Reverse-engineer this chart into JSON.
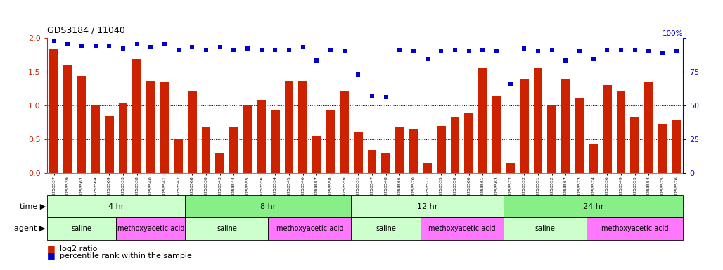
{
  "title": "GDS3184 / 11040",
  "samples": [
    "GSM253537",
    "GSM253539",
    "GSM253562",
    "GSM253564",
    "GSM253569",
    "GSM253533",
    "GSM253538",
    "GSM253540",
    "GSM253541",
    "GSM253542",
    "GSM253568",
    "GSM253530",
    "GSM253543",
    "GSM253544",
    "GSM253555",
    "GSM253556",
    "GSM253534",
    "GSM253545",
    "GSM253546",
    "GSM253557",
    "GSM253558",
    "GSM253559",
    "GSM253531",
    "GSM253547",
    "GSM253548",
    "GSM253566",
    "GSM253570",
    "GSM253571",
    "GSM253535",
    "GSM253550",
    "GSM253560",
    "GSM253561",
    "GSM253563",
    "GSM253572",
    "GSM253532",
    "GSM253551",
    "GSM253552",
    "GSM253567",
    "GSM253573",
    "GSM253574",
    "GSM253536",
    "GSM253549",
    "GSM253553",
    "GSM253554",
    "GSM253575",
    "GSM253576"
  ],
  "log2_ratio": [
    1.84,
    1.6,
    1.44,
    1.01,
    0.84,
    1.03,
    1.68,
    1.36,
    1.35,
    0.5,
    1.21,
    0.68,
    0.3,
    0.68,
    1.0,
    1.08,
    0.94,
    1.36,
    1.36,
    0.54,
    0.94,
    1.22,
    0.6,
    0.33,
    0.3,
    0.68,
    0.64,
    0.14,
    0.7,
    0.83,
    0.88,
    1.56,
    1.13,
    0.14,
    1.38,
    1.56,
    1.0,
    1.38,
    1.1,
    0.42,
    1.3,
    1.22,
    0.83,
    1.35,
    0.72,
    0.79
  ],
  "percentile": [
    98,
    95,
    94,
    94,
    94,
    92,
    95,
    93,
    95,
    91,
    93,
    91,
    93,
    91,
    92,
    91,
    91,
    91,
    93,
    83,
    91,
    90,
    73,
    57,
    56,
    91,
    90,
    84,
    90,
    91,
    90,
    91,
    90,
    66,
    92,
    90,
    91,
    83,
    90,
    84,
    91,
    91,
    91,
    90,
    89,
    90
  ],
  "bar_color": "#cc2200",
  "dot_color": "#0000cc",
  "bg_color": "#ffffff",
  "time_groups": [
    {
      "label": "4 hr",
      "start": 0,
      "end": 10,
      "color": "#ccffcc"
    },
    {
      "label": "8 hr",
      "start": 10,
      "end": 22,
      "color": "#88ee88"
    },
    {
      "label": "12 hr",
      "start": 22,
      "end": 33,
      "color": "#ccffcc"
    },
    {
      "label": "24 hr",
      "start": 33,
      "end": 46,
      "color": "#88ee88"
    }
  ],
  "agent_groups": [
    {
      "label": "saline",
      "start": 0,
      "end": 5,
      "color": "#ccffcc"
    },
    {
      "label": "methoxyacetic acid",
      "start": 5,
      "end": 10,
      "color": "#ff77ff"
    },
    {
      "label": "saline",
      "start": 10,
      "end": 16,
      "color": "#ccffcc"
    },
    {
      "label": "methoxyacetic acid",
      "start": 16,
      "end": 22,
      "color": "#ff77ff"
    },
    {
      "label": "saline",
      "start": 22,
      "end": 27,
      "color": "#ccffcc"
    },
    {
      "label": "methoxyacetic acid",
      "start": 27,
      "end": 33,
      "color": "#ff77ff"
    },
    {
      "label": "saline",
      "start": 33,
      "end": 39,
      "color": "#ccffcc"
    },
    {
      "label": "methoxyacetic acid",
      "start": 39,
      "end": 46,
      "color": "#ff77ff"
    }
  ],
  "ylim_left": [
    0,
    2
  ],
  "ylim_right": [
    0,
    100
  ],
  "yticks_left": [
    0,
    0.5,
    1.0,
    1.5,
    2.0
  ],
  "yticks_right": [
    0,
    25,
    50,
    75,
    100
  ]
}
